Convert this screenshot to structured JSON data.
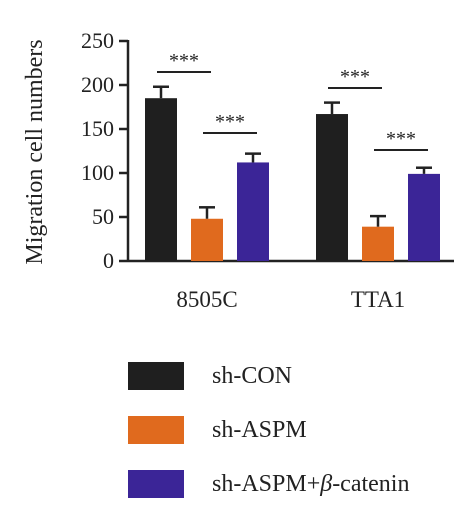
{
  "colors": {
    "sh_con": "#1f1f1f",
    "sh_aspm": "#e06a1e",
    "sh_aspm_catenin": "#3b2597",
    "axis": "#222222",
    "error_bar": "#222222"
  },
  "chart_data": {
    "type": "bar",
    "ylabel": "Migration cell numbers",
    "xlabel": "",
    "ylim": [
      0,
      250
    ],
    "yticks": [
      0,
      50,
      100,
      150,
      200,
      250
    ],
    "categories": [
      "8505C",
      "TTA1"
    ],
    "series": [
      {
        "name": "sh-CON",
        "values": [
          185,
          167
        ],
        "errors": [
          13,
          13
        ]
      },
      {
        "name": "sh-ASPM",
        "values": [
          48,
          39
        ],
        "errors": [
          13,
          12
        ]
      },
      {
        "name": "sh-ASPM+β-catenin",
        "values": [
          112,
          99
        ],
        "errors": [
          10,
          7
        ]
      }
    ],
    "significance": [
      {
        "category": "8505C",
        "from_series": 0,
        "to_series": 1,
        "label": "***"
      },
      {
        "category": "8505C",
        "from_series": 1,
        "to_series": 2,
        "label": "***"
      },
      {
        "category": "TTA1",
        "from_series": 0,
        "to_series": 1,
        "label": "***"
      },
      {
        "category": "TTA1",
        "from_series": 1,
        "to_series": 2,
        "label": "***"
      }
    ],
    "grid": false,
    "legend_position": "bottom"
  },
  "legend": {
    "items": [
      {
        "label": "sh-CON"
      },
      {
        "label": "sh-ASPM"
      },
      {
        "label_prefix": "sh-ASPM+",
        "label_symbol": "β",
        "label_suffix": "-catenin"
      }
    ]
  }
}
